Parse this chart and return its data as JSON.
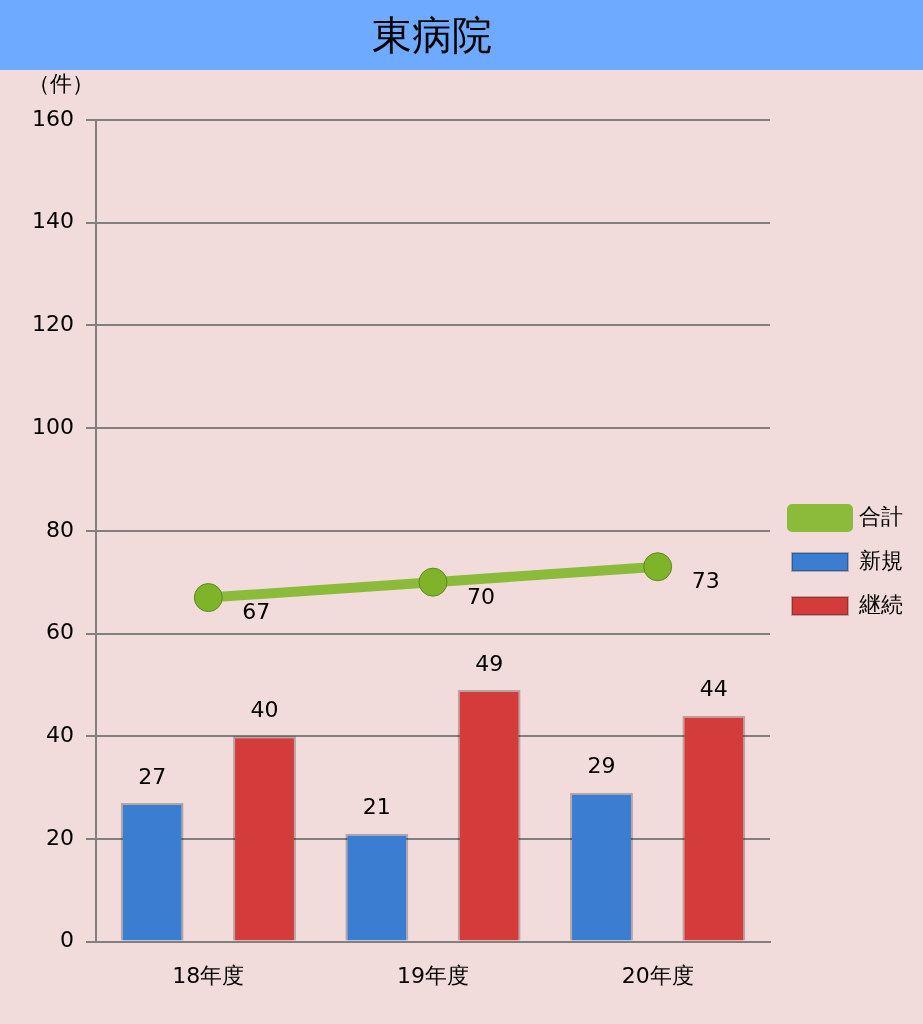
{
  "chart_data": {
    "type": "bar",
    "title": "東病院",
    "ylabel": "（件）",
    "categories": [
      "18年度",
      "19年度",
      "20年度"
    ],
    "series": [
      {
        "name": "新規",
        "color": "#3b7dd0",
        "values": [
          27,
          21,
          29
        ]
      },
      {
        "name": "継続",
        "color": "#d43c3c",
        "values": [
          40,
          49,
          44
        ]
      },
      {
        "name": "合計",
        "type": "line",
        "color": "#8cbb3c",
        "values": [
          67,
          70,
          73
        ]
      }
    ],
    "ylim": [
      0,
      160
    ],
    "yticks": [
      0,
      20,
      40,
      60,
      80,
      100,
      120,
      140,
      160
    ],
    "grid": "y",
    "legend": "right",
    "marker": "circle",
    "data_labels": true
  }
}
